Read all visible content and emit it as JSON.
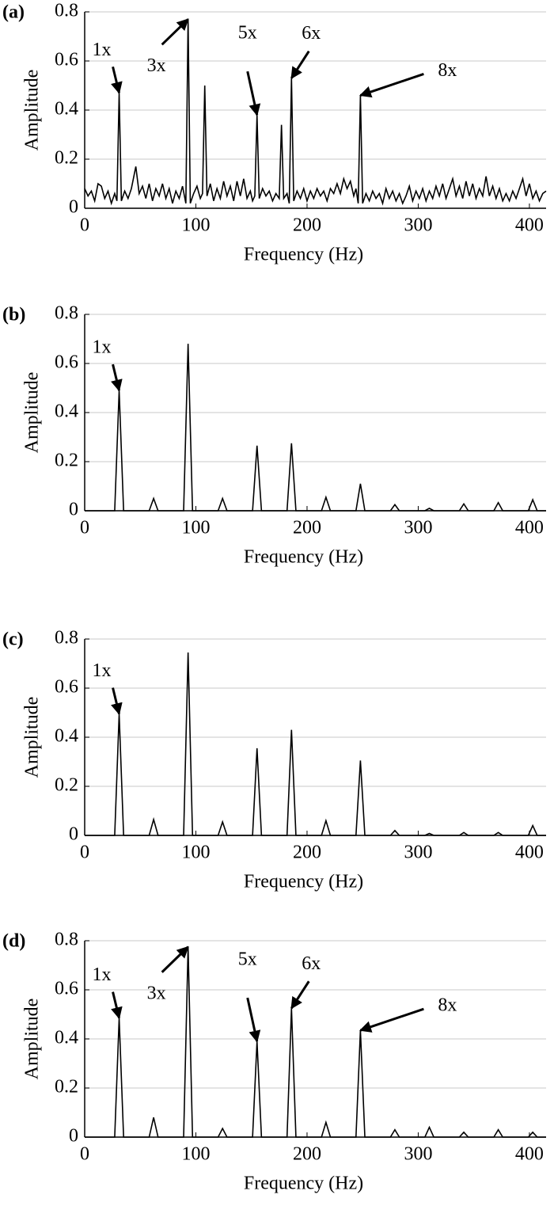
{
  "chart_data": [
    {
      "type": "line",
      "label": "(a)",
      "x_label": "Frequency (Hz)",
      "y_label": "Amplitude",
      "xlim": [
        0,
        415
      ],
      "ylim": [
        0,
        0.8
      ],
      "xticks": [
        0,
        100,
        200,
        300,
        400
      ],
      "yticks": [
        0,
        0.2,
        0.4,
        0.6,
        0.8
      ],
      "grid": true,
      "color": "#000000",
      "x": [
        0,
        3,
        6,
        9,
        12,
        15,
        18,
        21,
        24,
        27,
        29,
        31,
        33,
        36,
        39,
        42,
        46,
        49,
        52,
        55,
        58,
        61,
        64,
        67,
        70,
        73,
        76,
        79,
        82,
        85,
        88,
        91,
        93,
        95,
        98,
        101,
        104,
        106,
        108,
        110,
        113,
        116,
        119,
        122,
        125,
        128,
        131,
        134,
        137,
        140,
        143,
        146,
        149,
        151,
        153,
        155,
        157,
        160,
        163,
        166,
        169,
        172,
        175,
        177,
        179,
        182,
        184,
        186,
        188,
        191,
        194,
        197,
        200,
        203,
        206,
        209,
        212,
        215,
        218,
        221,
        224,
        227,
        230,
        233,
        236,
        239,
        242,
        244,
        246,
        248,
        250,
        253,
        256,
        259,
        262,
        265,
        268,
        271,
        274,
        277,
        280,
        283,
        286,
        289,
        292,
        295,
        298,
        301,
        304,
        307,
        310,
        313,
        316,
        319,
        322,
        325,
        328,
        331,
        334,
        337,
        340,
        343,
        346,
        349,
        352,
        355,
        358,
        361,
        364,
        367,
        370,
        373,
        376,
        379,
        382,
        385,
        388,
        391,
        394,
        397,
        400,
        403,
        406,
        409,
        412,
        415
      ],
      "values": [
        0.08,
        0.05,
        0.07,
        0.03,
        0.1,
        0.09,
        0.04,
        0.07,
        0.02,
        0.06,
        0.03,
        0.47,
        0.03,
        0.07,
        0.04,
        0.08,
        0.17,
        0.06,
        0.09,
        0.04,
        0.1,
        0.03,
        0.08,
        0.05,
        0.1,
        0.04,
        0.08,
        0.02,
        0.07,
        0.04,
        0.09,
        0.02,
        0.77,
        0.02,
        0.06,
        0.09,
        0.04,
        0.06,
        0.5,
        0.05,
        0.1,
        0.03,
        0.08,
        0.04,
        0.11,
        0.05,
        0.09,
        0.03,
        0.11,
        0.05,
        0.12,
        0.04,
        0.07,
        0.03,
        0.05,
        0.38,
        0.04,
        0.08,
        0.05,
        0.07,
        0.03,
        0.06,
        0.04,
        0.34,
        0.04,
        0.06,
        0.02,
        0.53,
        0.03,
        0.07,
        0.04,
        0.08,
        0.03,
        0.07,
        0.04,
        0.08,
        0.05,
        0.07,
        0.03,
        0.08,
        0.06,
        0.1,
        0.06,
        0.12,
        0.08,
        0.11,
        0.05,
        0.08,
        0.02,
        0.46,
        0.02,
        0.06,
        0.03,
        0.07,
        0.04,
        0.06,
        0.02,
        0.08,
        0.04,
        0.07,
        0.03,
        0.06,
        0.02,
        0.05,
        0.09,
        0.03,
        0.07,
        0.04,
        0.08,
        0.03,
        0.07,
        0.04,
        0.09,
        0.05,
        0.1,
        0.04,
        0.08,
        0.12,
        0.05,
        0.09,
        0.04,
        0.11,
        0.05,
        0.1,
        0.04,
        0.08,
        0.05,
        0.13,
        0.05,
        0.09,
        0.04,
        0.08,
        0.03,
        0.06,
        0.03,
        0.07,
        0.04,
        0.08,
        0.12,
        0.05,
        0.1,
        0.04,
        0.07,
        0.03,
        0.06,
        0.07
      ],
      "annotations": [
        {
          "text": "1x",
          "x": 31,
          "y": 0.47
        },
        {
          "text": "3x",
          "x": 93,
          "y": 0.77
        },
        {
          "text": "5x",
          "x": 155,
          "y": 0.38
        },
        {
          "text": "6x",
          "x": 186,
          "y": 0.53
        },
        {
          "text": "8x",
          "x": 248,
          "y": 0.46
        }
      ]
    },
    {
      "type": "line",
      "label": "(b)",
      "x_label": "Frequency (Hz)",
      "y_label": "Amplitude",
      "xlim": [
        0,
        415
      ],
      "ylim": [
        0,
        0.8
      ],
      "xticks": [
        0,
        100,
        200,
        300,
        400
      ],
      "yticks": [
        0,
        0.2,
        0.4,
        0.6,
        0.8
      ],
      "grid": true,
      "color": "#000000",
      "x": [
        0,
        27,
        31,
        35,
        58,
        62,
        66,
        89,
        93,
        97,
        120,
        124,
        128,
        151,
        155,
        159,
        182,
        186,
        190,
        213,
        217,
        221,
        244,
        248,
        252,
        275,
        279,
        283,
        306,
        310,
        314,
        337,
        341,
        345,
        368,
        372,
        376,
        399,
        403,
        407,
        415
      ],
      "values": [
        0,
        0,
        0.49,
        0,
        0,
        0.05,
        0,
        0,
        0.68,
        0,
        0,
        0.05,
        0,
        0,
        0.265,
        0,
        0,
        0.275,
        0,
        0,
        0.055,
        0,
        0,
        0.11,
        0,
        0,
        0.025,
        0,
        0,
        0.01,
        0,
        0,
        0.028,
        0,
        0,
        0.033,
        0,
        0,
        0.045,
        0,
        0
      ],
      "annotations": [
        {
          "text": "1x",
          "x": 31,
          "y": 0.49
        }
      ]
    },
    {
      "type": "line",
      "label": "(c)",
      "x_label": "Frequency (Hz)",
      "y_label": "Amplitude",
      "xlim": [
        0,
        415
      ],
      "ylim": [
        0,
        0.8
      ],
      "xticks": [
        0,
        100,
        200,
        300,
        400
      ],
      "yticks": [
        0,
        0.2,
        0.4,
        0.6,
        0.8
      ],
      "grid": true,
      "color": "#000000",
      "x": [
        0,
        27,
        31,
        35,
        58,
        62,
        66,
        89,
        93,
        97,
        120,
        124,
        128,
        151,
        155,
        159,
        182,
        186,
        190,
        213,
        217,
        221,
        244,
        248,
        252,
        275,
        279,
        283,
        306,
        310,
        314,
        337,
        341,
        345,
        368,
        372,
        376,
        399,
        403,
        407,
        415
      ],
      "values": [
        0,
        0,
        0.495,
        0,
        0,
        0.065,
        0,
        0,
        0.745,
        0,
        0,
        0.055,
        0,
        0,
        0.355,
        0,
        0,
        0.43,
        0,
        0,
        0.06,
        0,
        0,
        0.305,
        0,
        0,
        0.02,
        0,
        0,
        0.008,
        0,
        0,
        0.012,
        0,
        0,
        0.012,
        0,
        0,
        0.04,
        0,
        0
      ],
      "annotations": [
        {
          "text": "1x",
          "x": 31,
          "y": 0.495
        }
      ]
    },
    {
      "type": "line",
      "label": "(d)",
      "x_label": "Frequency (Hz)",
      "y_label": "Amplitude",
      "xlim": [
        0,
        415
      ],
      "ylim": [
        0,
        0.8
      ],
      "xticks": [
        0,
        100,
        200,
        300,
        400
      ],
      "yticks": [
        0,
        0.2,
        0.4,
        0.6,
        0.8
      ],
      "grid": true,
      "color": "#000000",
      "x": [
        0,
        27,
        31,
        35,
        58,
        62,
        66,
        89,
        93,
        97,
        120,
        124,
        128,
        151,
        155,
        159,
        182,
        186,
        190,
        213,
        217,
        221,
        244,
        248,
        252,
        275,
        279,
        283,
        306,
        310,
        314,
        337,
        341,
        345,
        368,
        372,
        376,
        399,
        403,
        407,
        415
      ],
      "values": [
        0,
        0,
        0.485,
        0,
        0,
        0.08,
        0,
        0,
        0.775,
        0,
        0,
        0.035,
        0,
        0,
        0.39,
        0,
        0,
        0.525,
        0,
        0,
        0.06,
        0,
        0,
        0.435,
        0,
        0,
        0.03,
        0,
        0,
        0.04,
        0,
        0,
        0.02,
        0,
        0,
        0.03,
        0,
        0,
        0.02,
        0,
        0
      ],
      "annotations": [
        {
          "text": "1x",
          "x": 31,
          "y": 0.485
        },
        {
          "text": "3x",
          "x": 93,
          "y": 0.775
        },
        {
          "text": "5x",
          "x": 155,
          "y": 0.39
        },
        {
          "text": "6x",
          "x": 186,
          "y": 0.525
        },
        {
          "text": "8x",
          "x": 248,
          "y": 0.435
        }
      ]
    }
  ]
}
